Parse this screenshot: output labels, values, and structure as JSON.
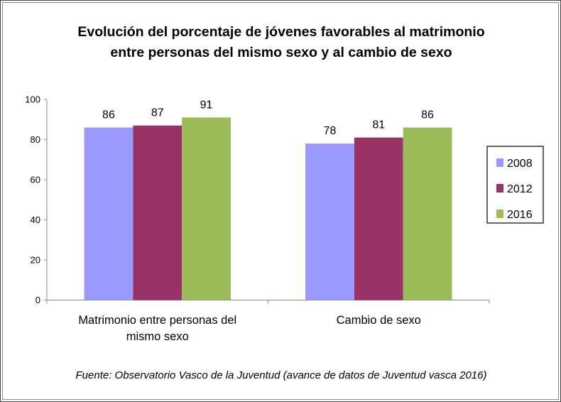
{
  "chart_data": {
    "type": "bar",
    "title_lines": [
      "Evolución del porcentaje de jóvenes favorables al matrimonio",
      "entre personas del mismo sexo y al cambio de sexo"
    ],
    "categories": [
      [
        "Matrimonio entre personas del",
        "mismo sexo"
      ],
      [
        "Cambio de sexo"
      ]
    ],
    "series": [
      {
        "name": "2008",
        "color": "#9999FF",
        "values": [
          86,
          78
        ]
      },
      {
        "name": "2012",
        "color": "#993366",
        "values": [
          87,
          81
        ]
      },
      {
        "name": "2016",
        "color": "#9BBB59",
        "values": [
          91,
          86
        ]
      }
    ],
    "ylim": [
      0,
      100
    ],
    "yticks": [
      0,
      20,
      40,
      60,
      80,
      100
    ],
    "grid": false,
    "legend": "right",
    "source": "Fuente: Observatorio Vasco de la Juventud (avance de datos de Juventud vasca 2016)"
  }
}
